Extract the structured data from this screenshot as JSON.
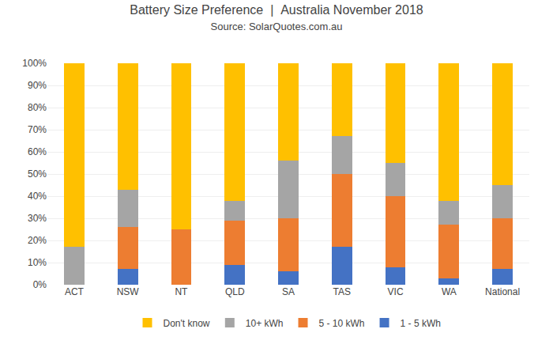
{
  "chart_data": {
    "type": "bar",
    "stacked": true,
    "title": "Battery Size Preference  |  Australia November 2018",
    "subtitle": "Source: SolarQuotes.com.au",
    "categories": [
      "ACT",
      "NSW",
      "NT",
      "QLD",
      "SA",
      "TAS",
      "VIC",
      "WA",
      "National"
    ],
    "series": [
      {
        "name": "1 - 5 kWh",
        "color": "#4472C4",
        "values": [
          0,
          7,
          0,
          9,
          6,
          17,
          8,
          3,
          7
        ]
      },
      {
        "name": "5 - 10 kWh",
        "color": "#ED7D31",
        "values": [
          0,
          19,
          25,
          20,
          24,
          33,
          32,
          24,
          23
        ]
      },
      {
        "name": "10+ kWh",
        "color": "#A5A5A5",
        "values": [
          17,
          17,
          0,
          9,
          26,
          17,
          15,
          11,
          15
        ]
      },
      {
        "name": "Don't know",
        "color": "#FFC000",
        "values": [
          83,
          57,
          75,
          62,
          44,
          33,
          45,
          62,
          55
        ]
      }
    ],
    "ylim": [
      0,
      100
    ],
    "yticks": [
      {
        "value": 0,
        "label": "0%"
      },
      {
        "value": 10,
        "label": "10%"
      },
      {
        "value": 20,
        "label": "20%"
      },
      {
        "value": 30,
        "label": "30%"
      },
      {
        "value": 40,
        "label": "40%"
      },
      {
        "value": 50,
        "label": "50%"
      },
      {
        "value": 60,
        "label": "60%"
      },
      {
        "value": 70,
        "label": "70%"
      },
      {
        "value": 80,
        "label": "80%"
      },
      {
        "value": 90,
        "label": "90%"
      },
      {
        "value": 100,
        "label": "100%"
      }
    ],
    "grid": true,
    "legend": "bottom"
  }
}
